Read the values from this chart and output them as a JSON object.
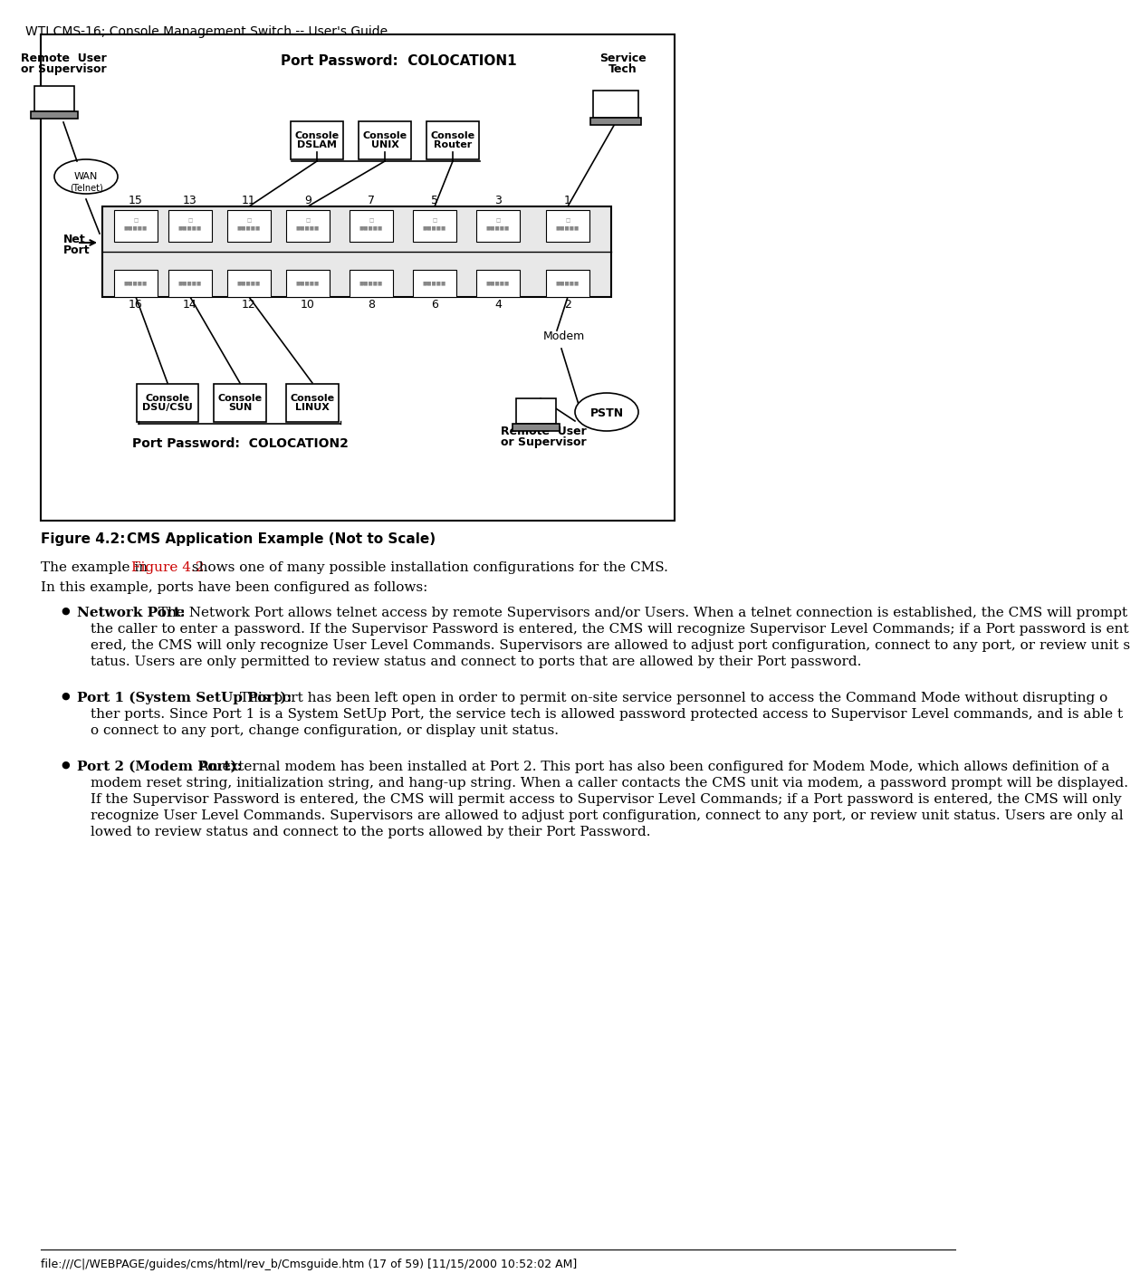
{
  "page_title": "WTI CMS-16; Console Management Switch -- User's Guide",
  "footer": "file:///C|/WEBPAGE/guides/cms/html/rev_b/Cmsguide.htm (17 of 59) [11/15/2000 10:52:02 AM]",
  "figure_caption": "Figure 4.2:   CMS Application Example (Not to Scale)",
  "bg_color": "#ffffff",
  "diagram_border_color": "#000000",
  "text_color": "#000000",
  "link_color": "#cc0000",
  "intro_text": "The example in Figure 4.2 shows one of many possible installation configurations for the CMS.\nIn this example, ports have been configured as follows:",
  "bullet_items": [
    {
      "bold_label": "Network Port:",
      "text": " The Network Port allows telnet access by remote Supervisors and/or Users. When a telnet connection is established, the CMS will prompt the caller to enter a password. If the Supervisor Password is entered, the CMS will recognize Supervisor Level Commands; if a Port password is entered, the CMS will only recognize User Level Commands. Supervisors are allowed to adjust port configuration, connect to any port, or review unit status. Users are only permitted to review status and connect to ports that are allowed by their Port password."
    },
    {
      "bold_label": "Port 1 (System SetUp Port):",
      "text": " This port has been left open in order to permit on-site service personnel to access the Command Mode without disrupting other ports. Since Port 1 is a System SetUp Port, the service tech is allowed password protected access to Supervisor Level commands, and is able to connect to any port, change configuration, or display unit status."
    },
    {
      "bold_label": "Port 2 (Modem Port):",
      "text": " An external modem has been installed at Port 2. This port has also been configured for Modem Mode, which allows definition of a modem reset string, initialization string, and hang-up string. When a caller contacts the CMS unit via modem, a password prompt will be displayed. If the Supervisor Password is entered, the CMS will permit access to Supervisor Level Commands; if a Port password is entered, the CMS will only recognize User Level Commands. Supervisors are allowed to adjust port configuration, connect to any port, or review unit status. Users are only allowed to review status and connect to the ports allowed by their Port Password."
    }
  ]
}
